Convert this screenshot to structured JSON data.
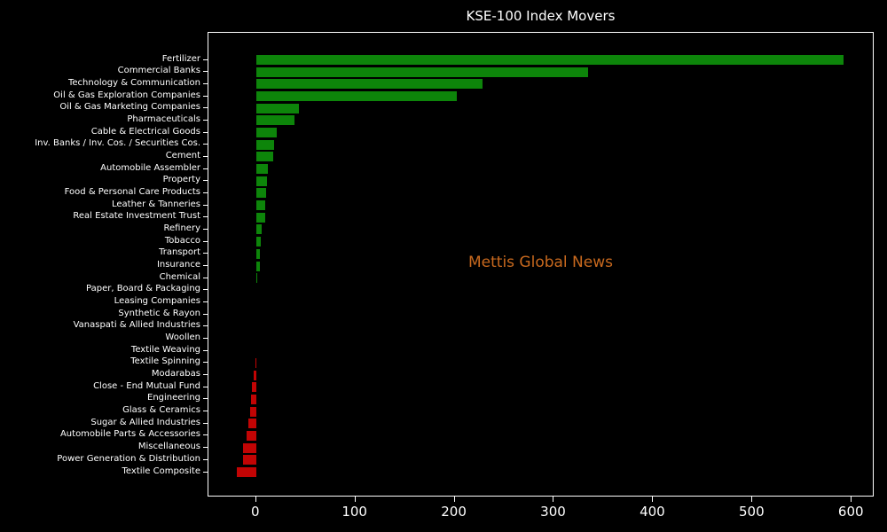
{
  "chart_data": {
    "type": "bar",
    "orientation": "horizontal",
    "title": "KSE-100 Index Movers",
    "xlabel": "",
    "ylabel": "",
    "xticks": [
      0,
      100,
      200,
      300,
      400,
      500,
      600
    ],
    "xlim": [
      -48,
      623
    ],
    "grid": false,
    "legend": false,
    "background_color": "#000000",
    "text_color": "#ffffff",
    "positive_color": "#0d850a",
    "negative_color": "#c20404",
    "categories": [
      "Fertilizer",
      "Commercial Banks",
      "Technology & Communication",
      "Oil & Gas Exploration Companies",
      "Oil & Gas Marketing Companies",
      "Pharmaceuticals",
      "Cable & Electrical Goods",
      "Inv. Banks / Inv. Cos. / Securities Cos.",
      "Cement",
      "Automobile Assembler",
      "Property",
      "Food & Personal Care Products",
      "Leather & Tanneries",
      "Real Estate Investment Trust",
      "Refinery",
      "Tobacco",
      "Transport",
      "Insurance",
      "Chemical",
      "Paper, Board & Packaging",
      "Leasing Companies",
      "Synthetic & Rayon",
      "Vanaspati & Allied Industries",
      "Woollen",
      "Textile Weaving",
      "Textile Spinning",
      "Modarabas",
      "Close - End Mutual Fund",
      "Engineering",
      "Glass & Ceramics",
      "Sugar & Allied Industries",
      "Automobile Parts & Accessories",
      "Miscellaneous",
      "Power Generation & Distribution",
      "Textile Composite"
    ],
    "values": [
      592,
      334,
      228,
      202,
      43,
      39,
      21,
      18,
      17,
      11.5,
      11,
      10,
      9.5,
      9,
      5.5,
      4.5,
      4,
      3.5,
      1.5,
      0,
      0,
      0,
      0,
      0,
      0,
      -1,
      -2.5,
      -4.5,
      -5,
      -6,
      -8,
      -10,
      -13,
      -13.5,
      -19.5
    ]
  },
  "watermark": {
    "text": "Mettis Global News",
    "color": "#c8691e"
  }
}
